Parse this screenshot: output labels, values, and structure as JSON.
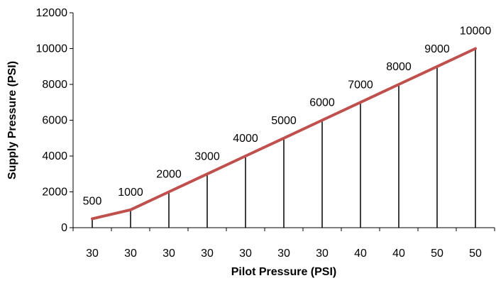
{
  "chart_data": {
    "type": "line",
    "title": "",
    "xlabel": "Pilot Pressure (PSI)",
    "ylabel": "Supply Pressure (PSI)",
    "categories": [
      "30",
      "30",
      "30",
      "30",
      "30",
      "30",
      "30",
      "40",
      "40",
      "50",
      "50"
    ],
    "series": [
      {
        "values": [
          500,
          1000,
          2000,
          3000,
          4000,
          5000,
          6000,
          7000,
          8000,
          9000,
          10000
        ]
      }
    ],
    "data_labels": [
      "500",
      "1000",
      "2000",
      "3000",
      "4000",
      "5000",
      "6000",
      "7000",
      "8000",
      "9000",
      "10000"
    ],
    "y_ticks": [
      0,
      2000,
      4000,
      6000,
      8000,
      10000,
      12000
    ],
    "ylim": [
      0,
      12000
    ],
    "drop_lines": true,
    "grid": false,
    "legend": "none",
    "colors": {
      "line": "#C0504D",
      "drop_line": "#000000",
      "axis": "#000000"
    }
  }
}
